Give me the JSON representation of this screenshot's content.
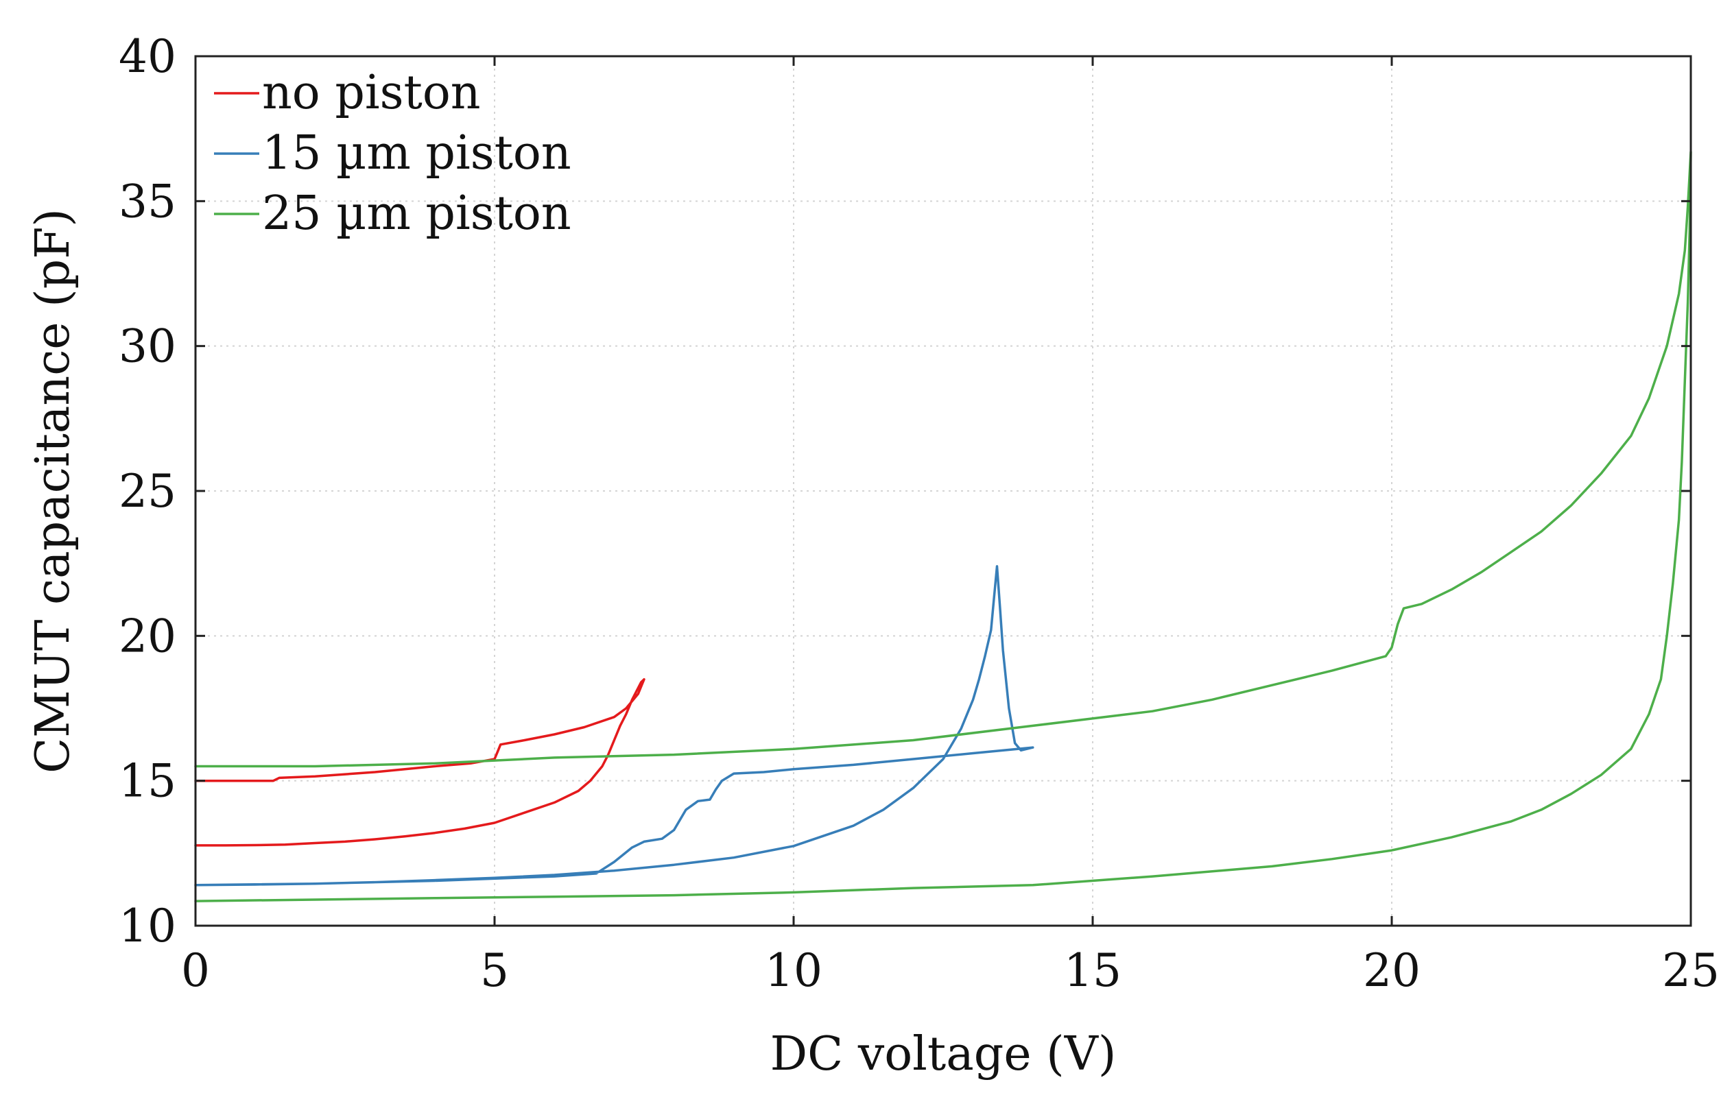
{
  "chart_data": {
    "type": "line",
    "title": "",
    "xlabel": "DC voltage (V)",
    "ylabel": "CMUT capacitance (pF)",
    "xlim": [
      0,
      25
    ],
    "ylim": [
      10,
      40
    ],
    "x_ticks": [
      "0",
      "5",
      "10",
      "15",
      "20",
      "25"
    ],
    "y_ticks": [
      "10",
      "15",
      "20",
      "25",
      "30",
      "35",
      "40"
    ],
    "x_tick_values": [
      0,
      5,
      10,
      15,
      20,
      25
    ],
    "y_tick_values": [
      10,
      15,
      20,
      25,
      30,
      35,
      40
    ],
    "grid": true,
    "legend_position": "top-left",
    "series": [
      {
        "name": "no piston",
        "color": "#e41a1c",
        "x": [
          0,
          1.3,
          1.4,
          2.0,
          3.0,
          4.0,
          4.6,
          5.0,
          5.05,
          5.1,
          5.5,
          6.0,
          6.5,
          7.0,
          7.2,
          7.4,
          7.5,
          7.45,
          7.3,
          7.2,
          7.1,
          7.0,
          6.9,
          6.8,
          6.6,
          6.4,
          6.0,
          5.5,
          5.0,
          4.5,
          4.0,
          3.5,
          3.0,
          2.5,
          2.0,
          1.5,
          1.0,
          0.5,
          0
        ],
        "y": [
          15.0,
          15.0,
          15.1,
          15.15,
          15.3,
          15.5,
          15.6,
          15.75,
          16.0,
          16.25,
          16.4,
          16.6,
          16.85,
          17.2,
          17.5,
          18.0,
          18.5,
          18.4,
          17.8,
          17.3,
          16.9,
          16.4,
          15.9,
          15.5,
          15.0,
          14.65,
          14.25,
          13.9,
          13.55,
          13.35,
          13.2,
          13.08,
          12.98,
          12.9,
          12.85,
          12.8,
          12.78,
          12.77,
          12.77
        ]
      },
      {
        "name": "15 µm piston",
        "color": "#377eb8",
        "x": [
          0,
          2,
          4,
          6,
          6.7,
          7.0,
          7.3,
          7.5,
          7.8,
          8.0,
          8.2,
          8.4,
          8.6,
          8.7,
          8.8,
          9.0,
          9.5,
          10,
          11,
          12,
          13,
          14.0,
          13.8,
          13.7,
          13.6,
          13.5,
          13.45,
          13.4,
          13.35,
          13.3,
          13.2,
          13.1,
          13.0,
          12.8,
          12.5,
          12.0,
          11.5,
          11.0,
          10.0,
          9.0,
          8.0,
          7.0,
          6.0,
          5.0,
          4.0,
          3.0,
          2.0,
          1.0,
          0
        ],
        "y": [
          11.4,
          11.45,
          11.55,
          11.7,
          11.8,
          12.2,
          12.7,
          12.9,
          13.0,
          13.3,
          14.0,
          14.3,
          14.35,
          14.7,
          15.0,
          15.25,
          15.3,
          15.4,
          15.55,
          15.75,
          15.95,
          16.15,
          16.05,
          16.3,
          17.5,
          19.5,
          21.0,
          22.4,
          21.3,
          20.2,
          19.3,
          18.5,
          17.8,
          16.8,
          15.75,
          14.75,
          14.0,
          13.45,
          12.75,
          12.35,
          12.1,
          11.9,
          11.75,
          11.65,
          11.57,
          11.5,
          11.45,
          11.42,
          11.4
        ]
      },
      {
        "name": "25 µm piston",
        "color": "#4daf4a",
        "x": [
          0,
          2,
          4,
          6,
          8,
          10,
          12,
          14,
          16,
          17,
          18,
          19,
          19.9,
          20.0,
          20.1,
          20.2,
          20.5,
          21,
          21.5,
          22,
          22.5,
          23,
          23.5,
          24,
          24.3,
          24.6,
          24.8,
          24.9,
          24.95,
          25.0,
          24.98,
          24.95,
          24.9,
          24.85,
          24.8,
          24.7,
          24.6,
          24.5,
          24.3,
          24.0,
          23.5,
          23.0,
          22.5,
          22.0,
          21.0,
          20.0,
          19.0,
          18.0,
          16.0,
          14.0,
          12.0,
          10.0,
          8.0,
          6.0,
          4.0,
          2.0,
          0
        ],
        "y": [
          15.5,
          15.5,
          15.6,
          15.8,
          15.9,
          16.1,
          16.4,
          16.9,
          17.4,
          17.8,
          18.3,
          18.8,
          19.3,
          19.6,
          20.4,
          20.95,
          21.1,
          21.6,
          22.2,
          22.9,
          23.6,
          24.5,
          25.6,
          26.9,
          28.2,
          30.0,
          31.8,
          33.3,
          34.8,
          36.7,
          34.0,
          31.5,
          28.8,
          26.0,
          24.0,
          21.8,
          20.0,
          18.5,
          17.3,
          16.1,
          15.2,
          14.55,
          14.0,
          13.6,
          13.05,
          12.6,
          12.3,
          12.05,
          11.7,
          11.4,
          11.3,
          11.15,
          11.05,
          11.0,
          10.95,
          10.9,
          10.85
        ]
      }
    ]
  }
}
